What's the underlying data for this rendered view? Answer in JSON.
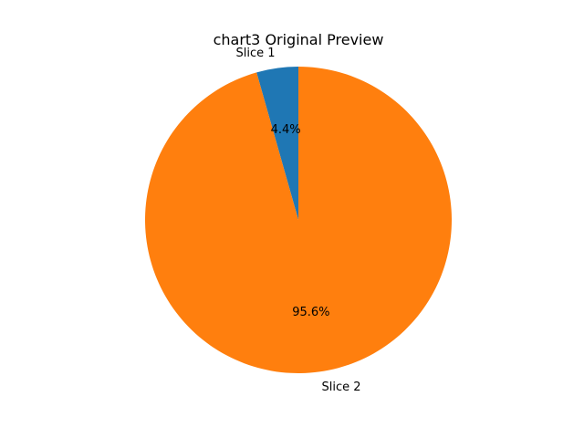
{
  "chart_data": {
    "type": "pie",
    "title": "chart3 Original Preview",
    "categories": [
      "Slice 1",
      "Slice 2"
    ],
    "values": [
      4.4,
      95.6
    ],
    "percent_labels": [
      "4.4%",
      "95.6%"
    ],
    "colors": [
      "#1f77b4",
      "#ff7f0e"
    ],
    "start_angle": "top",
    "direction": "counterclockwise",
    "legend": "none"
  }
}
